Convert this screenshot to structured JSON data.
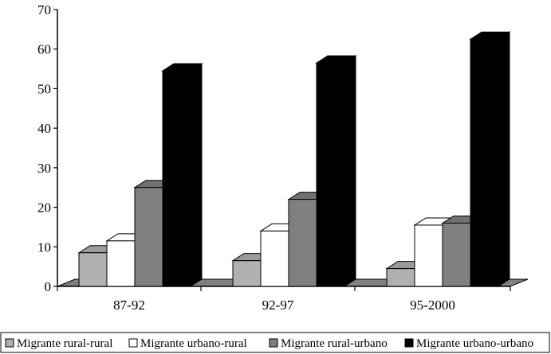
{
  "chart_data": {
    "type": "bar",
    "style": "3d-clustered",
    "categories": [
      "87-92",
      "92-97",
      "95-2000"
    ],
    "series": [
      {
        "name": "Migrante rural-rural",
        "color": "#b0b0b0",
        "values": [
          8.5,
          6.5,
          4.5
        ]
      },
      {
        "name": "Migrante urbano-rural",
        "color": "#ffffff",
        "values": [
          11.5,
          14,
          15.5
        ]
      },
      {
        "name": "Migrante rural-urbano",
        "color": "#808080",
        "values": [
          25,
          22,
          16
        ]
      },
      {
        "name": "Migrante urbano-urbano",
        "color": "#000000",
        "values": [
          54.5,
          56.5,
          62.5
        ]
      }
    ],
    "title": "",
    "xlabel": "",
    "ylabel": "",
    "ylim": [
      0,
      70
    ],
    "yticks": [
      0,
      10,
      20,
      30,
      40,
      50,
      60,
      70
    ],
    "grid": false,
    "legend_position": "bottom"
  }
}
